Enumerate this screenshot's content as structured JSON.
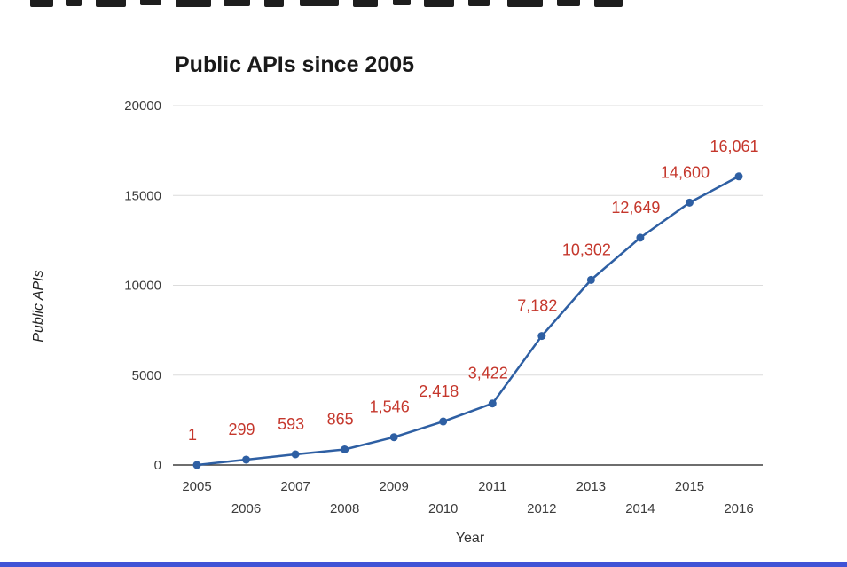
{
  "chart_data": {
    "type": "line",
    "title": "Public APIs since 2005",
    "xlabel": "Year",
    "ylabel": "Public APIs",
    "x": [
      2005,
      2006,
      2007,
      2008,
      2009,
      2010,
      2011,
      2012,
      2013,
      2014,
      2015,
      2016
    ],
    "values": [
      1,
      299,
      593,
      865,
      1546,
      2418,
      3422,
      7182,
      10302,
      12649,
      14600,
      16061
    ],
    "data_labels": [
      "1",
      "299",
      "593",
      "865",
      "1,546",
      "2,418",
      "3,422",
      "7,182",
      "10,302",
      "12,649",
      "14,600",
      "16,061"
    ],
    "y_ticks": [
      0,
      5000,
      10000,
      15000,
      20000
    ],
    "y_tick_labels": [
      "0",
      "5000",
      "10000",
      "15000",
      "20000"
    ],
    "ylim": [
      0,
      20000
    ],
    "grid": true,
    "legend": "none",
    "line_color": "#2e5fa3",
    "point_color": "#2e5fa3",
    "label_color": "#c5372c",
    "grid_color": "#dcdcdc",
    "axis_color": "#3f3f3f"
  }
}
